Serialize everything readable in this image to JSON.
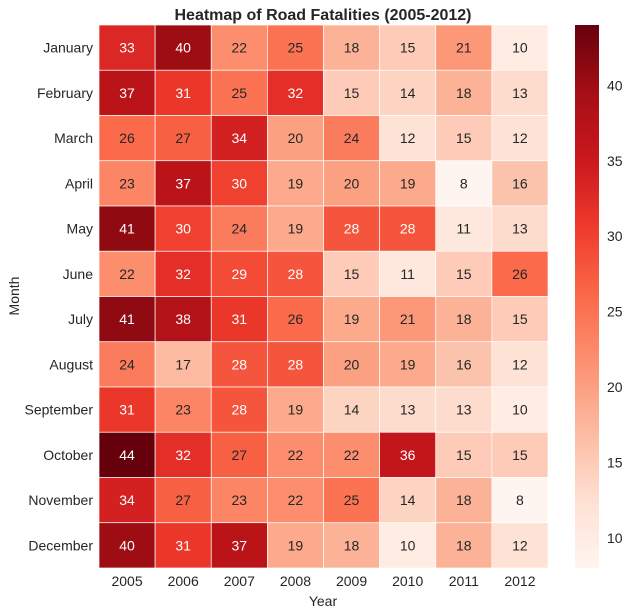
{
  "chart_data": {
    "type": "heatmap",
    "title": "Heatmap of Road Fatalities (2005-2012)",
    "xlabel": "Year",
    "ylabel": "Month",
    "x": [
      "2005",
      "2006",
      "2007",
      "2008",
      "2009",
      "2010",
      "2011",
      "2012"
    ],
    "y": [
      "January",
      "February",
      "March",
      "April",
      "May",
      "June",
      "July",
      "August",
      "September",
      "October",
      "November",
      "December"
    ],
    "values": [
      [
        33,
        40,
        22,
        25,
        18,
        15,
        21,
        10
      ],
      [
        37,
        31,
        25,
        32,
        15,
        14,
        18,
        13
      ],
      [
        26,
        27,
        34,
        20,
        24,
        12,
        15,
        12
      ],
      [
        23,
        37,
        30,
        19,
        20,
        19,
        8,
        16
      ],
      [
        41,
        30,
        24,
        19,
        28,
        28,
        11,
        13
      ],
      [
        22,
        32,
        29,
        28,
        15,
        11,
        15,
        26
      ],
      [
        41,
        38,
        31,
        26,
        19,
        21,
        18,
        15
      ],
      [
        24,
        17,
        28,
        28,
        20,
        19,
        16,
        12
      ],
      [
        31,
        23,
        28,
        19,
        14,
        13,
        13,
        10
      ],
      [
        44,
        32,
        27,
        22,
        22,
        36,
        15,
        15
      ],
      [
        34,
        27,
        23,
        22,
        25,
        14,
        18,
        8
      ],
      [
        40,
        31,
        37,
        19,
        18,
        10,
        18,
        12
      ]
    ],
    "colorscale": "Reds",
    "vmin": 8,
    "vmax": 44,
    "colorbar_ticks": [
      10,
      15,
      20,
      25,
      30,
      35,
      40
    ],
    "annotations": true
  }
}
